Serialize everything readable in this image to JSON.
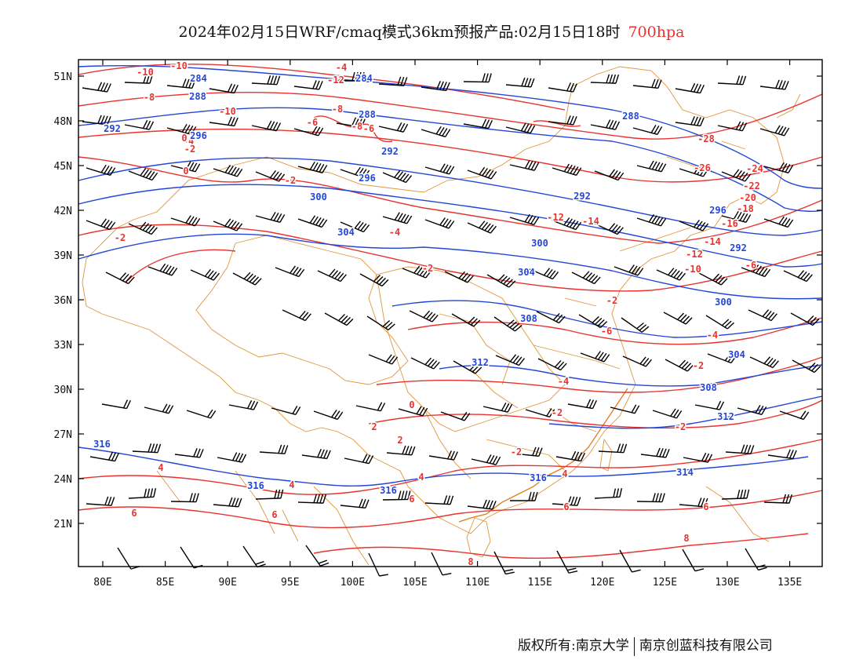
{
  "title": {
    "main": "2024年02月15日WRF/cmaq模式36km预报产品:02月15日18时",
    "level": "700hpa"
  },
  "footer": {
    "copyright": "版权所有:南京大学",
    "company": "南京创蓝科技有限公司"
  },
  "axes": {
    "lat_labels": [
      "51N",
      "48N",
      "45N",
      "42N",
      "39N",
      "36N",
      "33N",
      "30N",
      "27N",
      "24N",
      "21N"
    ],
    "lon_labels": [
      "80E",
      "85E",
      "90E",
      "95E",
      "100E",
      "105E",
      "110E",
      "115E",
      "120E",
      "125E",
      "130E",
      "135E"
    ]
  },
  "colors": {
    "temperature": "#e8332f",
    "geopotential": "#2446d8",
    "boundary": "#e0963a",
    "wind": "#000000"
  },
  "temperature_labels": [
    "-10",
    "-10",
    "-8",
    "-4",
    "-10",
    "-12",
    "-4",
    "-8",
    "-6",
    "-6",
    "-2",
    "-2",
    "0",
    "-2",
    "-2",
    "-4",
    "-2",
    "-12",
    "-14",
    "-28",
    "-26",
    "-24",
    "-22",
    "-20",
    "-18",
    "-16",
    "-14",
    "-12",
    "-10",
    "-6",
    "-8",
    "-6",
    "-4",
    "-2",
    "-4",
    "-2",
    "0",
    "-2",
    "-2",
    "2",
    "4",
    "4",
    "4",
    "4",
    "6",
    "6",
    "6",
    "6",
    "6",
    "8",
    "8",
    "2",
    "0"
  ],
  "height_labels": [
    "284",
    "288",
    "292",
    "296",
    "284",
    "288",
    "292",
    "296",
    "300",
    "304",
    "300",
    "304",
    "308",
    "312",
    "316",
    "316",
    "316",
    "316",
    "292",
    "288",
    "292",
    "296",
    "300",
    "304",
    "308",
    "312",
    "314"
  ]
}
